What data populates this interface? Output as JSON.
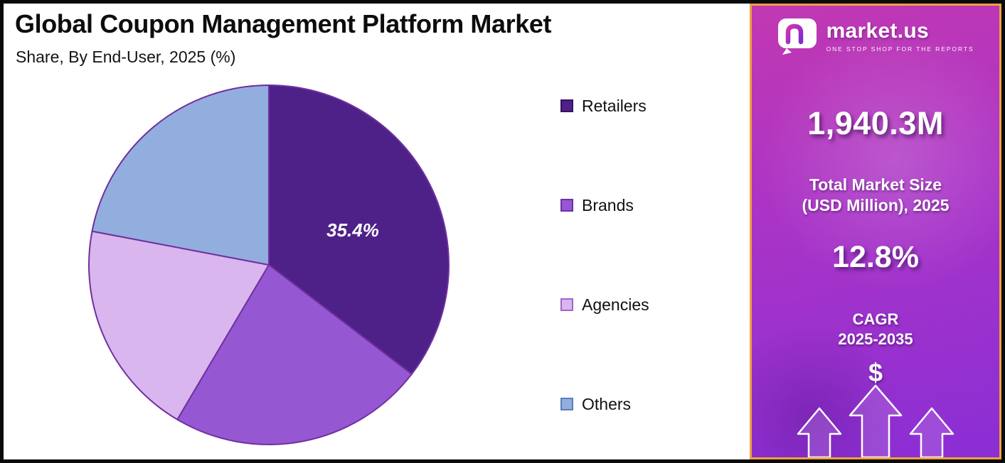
{
  "header": {
    "title": "Global Coupon Management Platform Market",
    "subtitle": "Share, By End-User, 2025 (%)"
  },
  "chart_data": {
    "type": "pie",
    "title": "Global Coupon Management Platform Market Share, By End-User, 2025 (%)",
    "unit": "percent",
    "start_angle_deg": 0,
    "direction": "clockwise",
    "legend_position": "right",
    "stroke_color": "#7030a0",
    "slices": [
      {
        "label": "Retailers",
        "value": 35.4,
        "value_label": "35.4%",
        "color": "#4e2189",
        "border": "#35135f"
      },
      {
        "label": "Brands",
        "value": 23.1,
        "color": "#9657d2",
        "border": "#6d2fa8"
      },
      {
        "label": "Agencies",
        "value": 19.5,
        "color": "#d9b6ee",
        "border": "#a263cc"
      },
      {
        "label": "Others",
        "value": 22.0,
        "color": "#92aede",
        "border": "#5c7fbd"
      }
    ]
  },
  "sidebar": {
    "logo": {
      "brand": "market.us",
      "tagline": "ONE STOP SHOP FOR THE REPORTS"
    },
    "market_size_value": "1,940.3M",
    "market_size_label_line1": "Total Market Size",
    "market_size_label_line2": "(USD Million), 2025",
    "cagr_value": "12.8%",
    "cagr_label_line1": "CAGR",
    "cagr_label_line2": "2025-2035",
    "dollar_symbol": "$",
    "colors": {
      "panel_border": "#efa140",
      "gradient_top": "#c138b2",
      "gradient_mid": "#ab34c6",
      "gradient_bottom": "#8a2ed5",
      "text": "#ffffff"
    }
  }
}
